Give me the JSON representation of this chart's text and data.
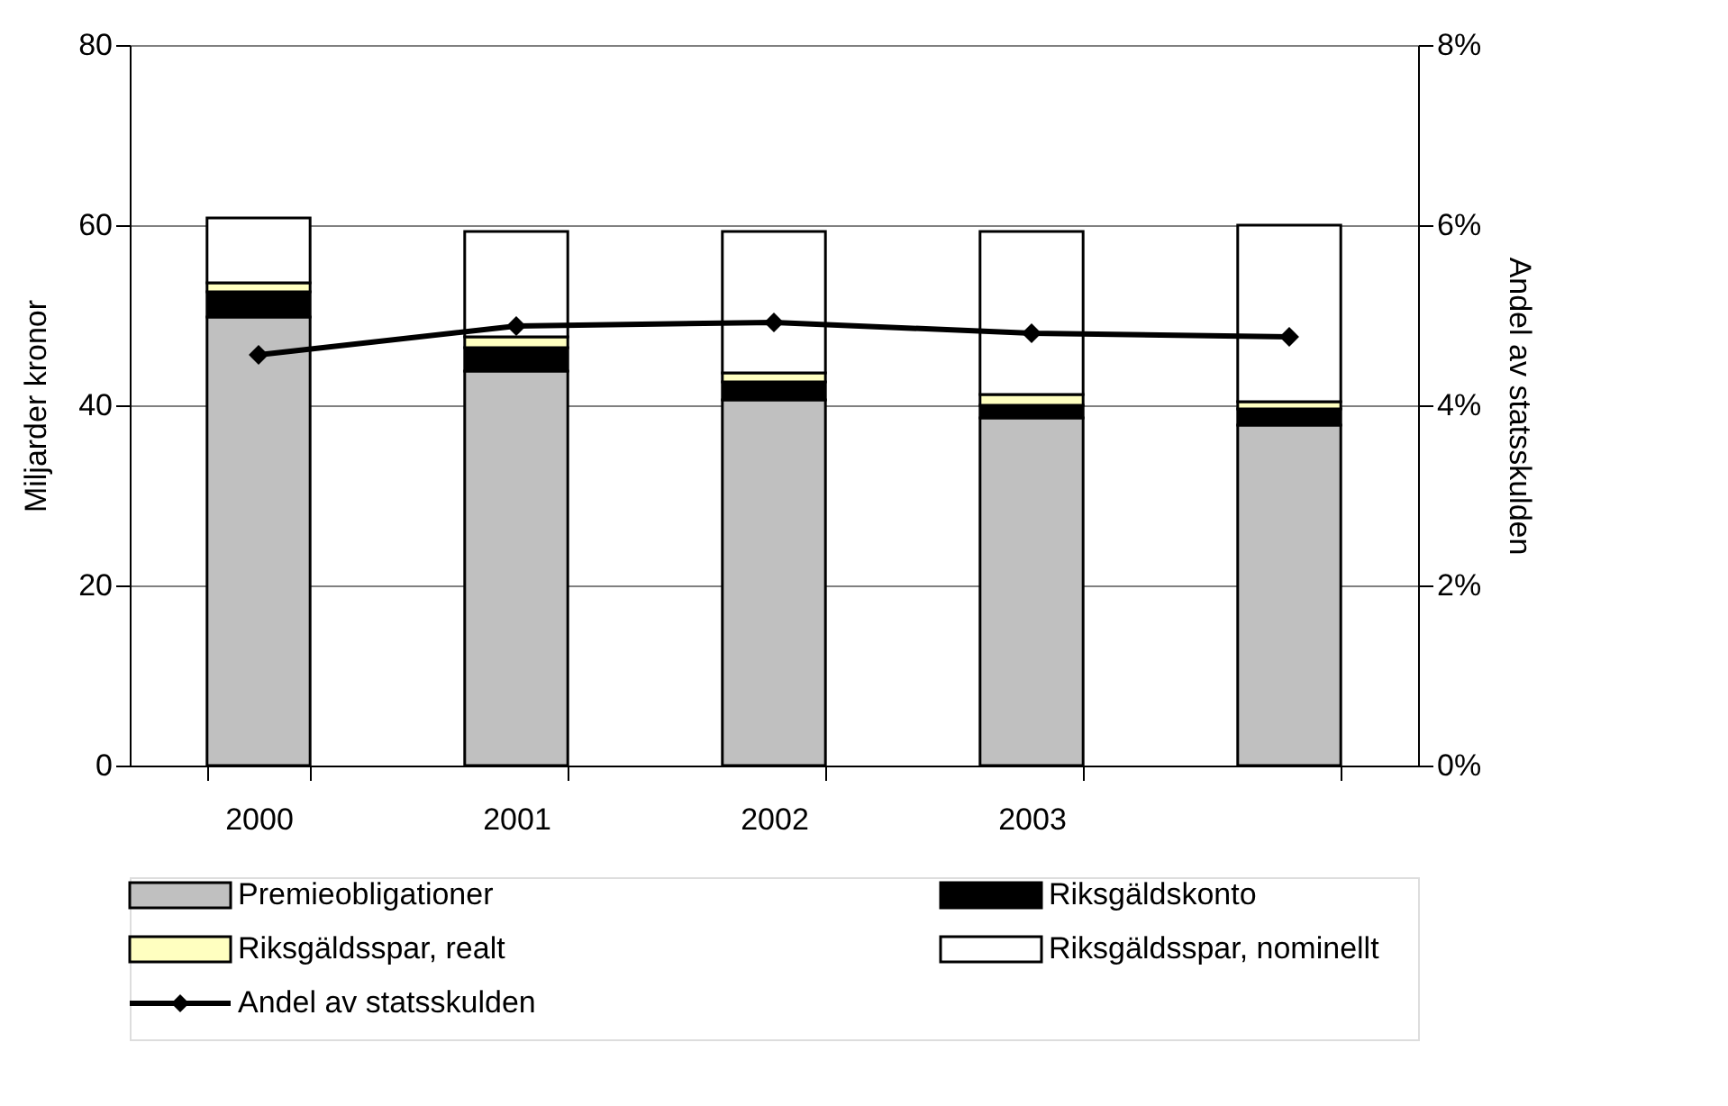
{
  "chart_data": {
    "type": "bar",
    "stacked": true,
    "categories": [
      "2000",
      "2001",
      "2002",
      "2003",
      null
    ],
    "ylabel": "Miljarder kronor",
    "y2label": "Andel av statsskulden",
    "ylim": [
      0,
      80
    ],
    "yticks": [
      0,
      20,
      40,
      60,
      80
    ],
    "y2lim": [
      0,
      8
    ],
    "y2ticks": [
      {
        "value": 0,
        "label": "0%"
      },
      {
        "value": 2,
        "label": "2%"
      },
      {
        "value": 4,
        "label": "4%"
      },
      {
        "value": 6,
        "label": "6%"
      },
      {
        "value": 8,
        "label": "8%"
      }
    ],
    "grid": "y",
    "legend": "bottom",
    "series": [
      {
        "name": "Premieobligationer",
        "color": "#c0c0c0",
        "values": [
          49.8,
          43.8,
          40.6,
          38.6,
          37.8
        ]
      },
      {
        "name": "Riksgäldskonto",
        "color": "#000000",
        "values": [
          2.8,
          2.6,
          2.0,
          1.4,
          1.8
        ]
      },
      {
        "name": "Riksgäldsspar, realt",
        "color": "#ffffc0",
        "values": [
          1.0,
          1.2,
          1.0,
          1.2,
          0.8
        ]
      },
      {
        "name": "Riksgäldsspar, nominellt",
        "color": "#ffffff",
        "values": [
          7.2,
          11.7,
          15.7,
          18.1,
          19.6
        ]
      },
      {
        "name": "Andel av statsskulden",
        "type": "line",
        "axis": "y2",
        "marker": "diamond",
        "line_style": "solid",
        "color": "#000000",
        "values": [
          4.56,
          4.88,
          4.92,
          4.8,
          4.76
        ]
      }
    ]
  }
}
